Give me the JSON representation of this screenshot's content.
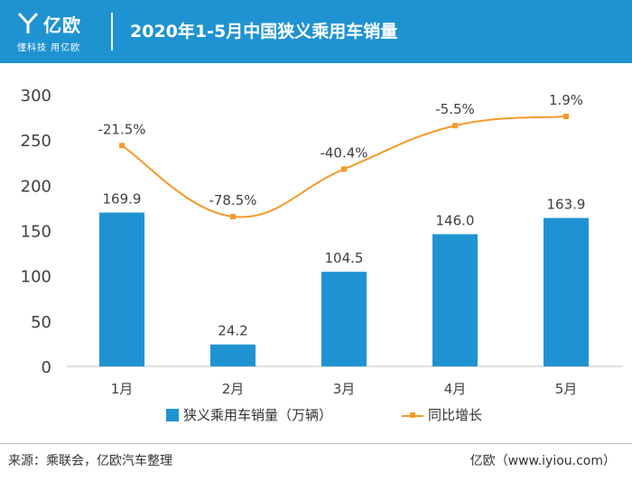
{
  "header": {
    "brand_name": "亿欧",
    "brand_tagline": "懂科技 用亿欧",
    "title": "2020年1-5月中国狭义乘用车销量"
  },
  "chart_data": {
    "type": "bar",
    "categories": [
      "1月",
      "2月",
      "3月",
      "4月",
      "5月"
    ],
    "series": [
      {
        "name": "狭义乘用车销量（万辆）",
        "type": "bar",
        "values": [
          169.9,
          24.2,
          104.5,
          146.0,
          163.9
        ],
        "labels": [
          "169.9",
          "24.2",
          "104.5",
          "146.0",
          "163.9"
        ]
      },
      {
        "name": "同比增长",
        "type": "line",
        "values": [
          -21.5,
          -78.5,
          -40.4,
          -5.5,
          1.9
        ],
        "labels": [
          "-21.5%",
          "-78.5%",
          "-40.4%",
          "-5.5%",
          "1.9%"
        ]
      }
    ],
    "y_ticks": [
      "0",
      "50",
      "100",
      "150",
      "200",
      "250",
      "300"
    ],
    "ylim": [
      0,
      300
    ],
    "grid": false,
    "legend_position": "bottom",
    "colors": {
      "bar": "#1f93d2",
      "line": "#f39a2a"
    }
  },
  "footer": {
    "source": "来源：乘联会，亿欧汽车整理",
    "credit": "亿欧（www.iyiou.com）"
  }
}
